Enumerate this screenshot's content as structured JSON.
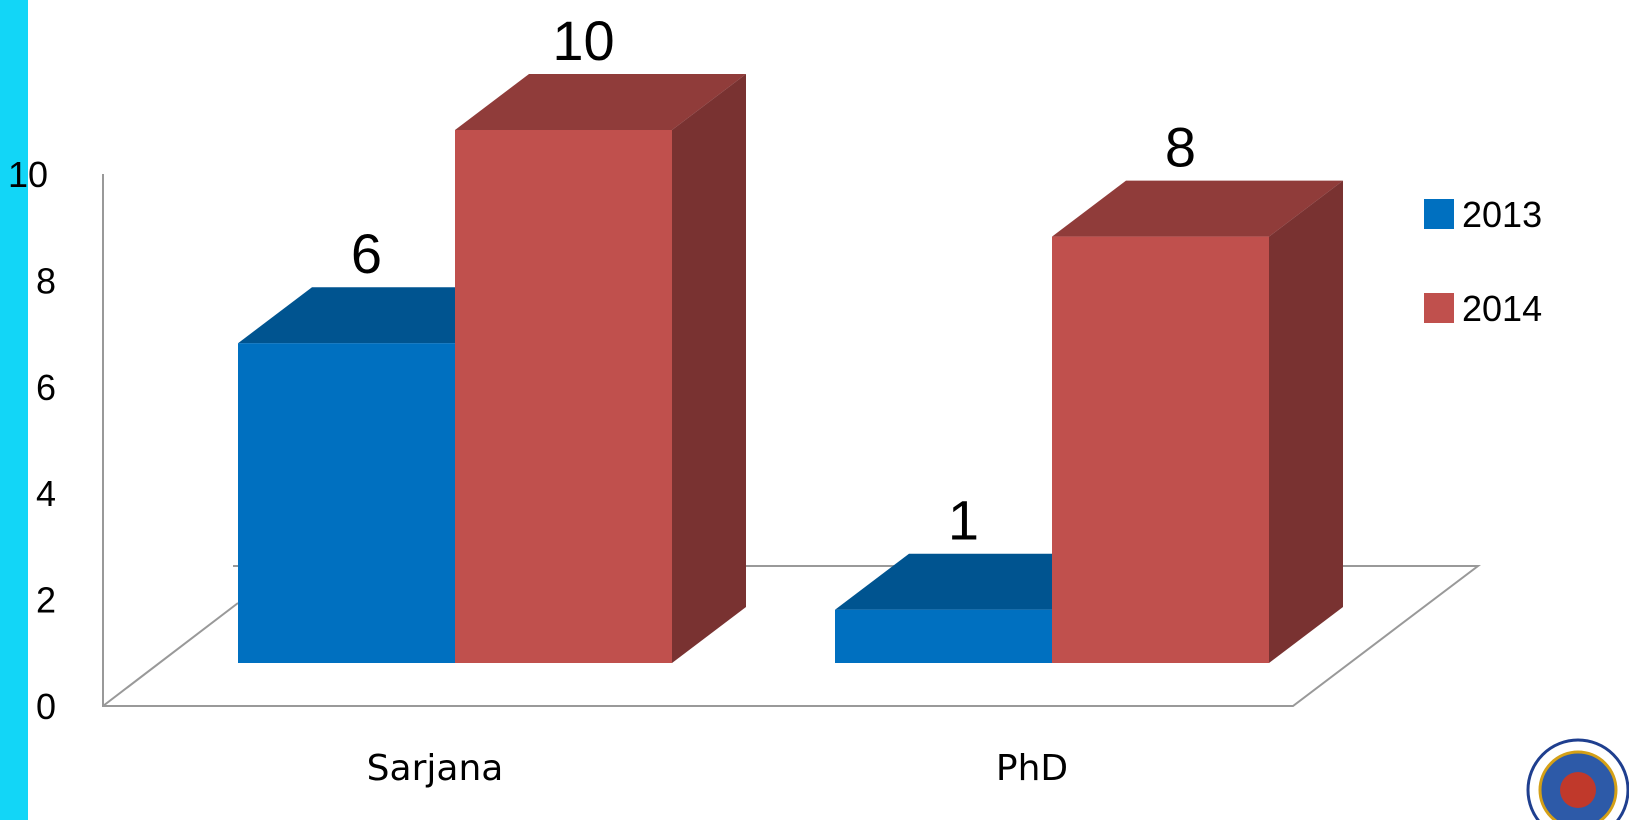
{
  "chart_data": {
    "type": "bar",
    "categories": [
      "Sarjana",
      "PhD"
    ],
    "series": [
      {
        "name": "2013",
        "values": [
          6,
          1
        ],
        "color": "#0070C0"
      },
      {
        "name": "2014",
        "values": [
          10,
          8
        ],
        "color": "#C0504D"
      }
    ],
    "ylim": [
      0,
      10
    ],
    "yticks": [
      0,
      2,
      4,
      6,
      8,
      10
    ],
    "legend_position": "right",
    "three_d": true
  },
  "colors": {
    "accent": "#12D6F7",
    "axis": "#999999"
  },
  "logo": {
    "icon": "emblem-seal-icon"
  }
}
